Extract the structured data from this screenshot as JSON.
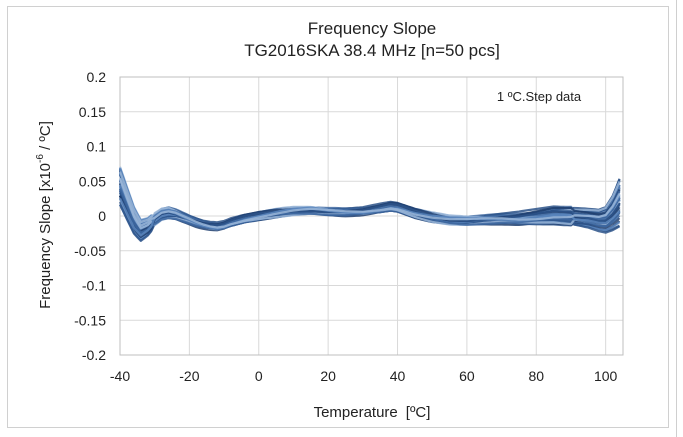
{
  "chart_data": {
    "type": "line",
    "title": "Frequency Slope",
    "subtitle": "TG2016SKA 38.4 MHz [n=50 pcs]",
    "xlabel": "Temperature",
    "xlabel_unit": "[ºC]",
    "ylabel_pre": "Frequency Slope [x10",
    "ylabel_exp": "-6",
    "ylabel_post": " / ºC]",
    "annotation": "1 ºC.Step data",
    "xlim": [
      -40,
      105
    ],
    "ylim": [
      -0.2,
      0.2
    ],
    "xticks": [
      -40,
      -20,
      0,
      20,
      40,
      60,
      80,
      100
    ],
    "xtick_labels": [
      "-40",
      "-20",
      "0",
      "20",
      "40",
      "60",
      "80",
      "100"
    ],
    "yticks": [
      -0.2,
      -0.15,
      -0.1,
      -0.05,
      0,
      0.05,
      0.1,
      0.15,
      0.2
    ],
    "ytick_labels": [
      "-0.2",
      "-0.15",
      "-0.1",
      "-0.05",
      "0",
      "0.05",
      "0.1",
      "0.15",
      "0.2"
    ],
    "grid": true,
    "series_count": 50,
    "series_colors": [
      "#1f3e6e",
      "#2b5288",
      "#3d67a0",
      "#5a86bd",
      "#9ab6d8"
    ],
    "envelope": {
      "x": [
        -40,
        -38,
        -36,
        -34,
        -32,
        -30,
        -28,
        -26,
        -24,
        -22,
        -20,
        -18,
        -16,
        -14,
        -12,
        -10,
        -8,
        -6,
        -4,
        -2,
        0,
        5,
        10,
        15,
        20,
        25,
        30,
        35,
        38,
        40,
        42,
        45,
        50,
        55,
        60,
        65,
        70,
        75,
        80,
        85,
        90,
        95,
        98,
        100,
        102,
        104
      ],
      "mean": [
        0.045,
        0.02,
        -0.005,
        -0.02,
        -0.015,
        -0.005,
        0.002,
        0.004,
        0.002,
        -0.002,
        -0.006,
        -0.01,
        -0.013,
        -0.015,
        -0.016,
        -0.014,
        -0.01,
        -0.007,
        -0.004,
        -0.002,
        0.0,
        0.004,
        0.007,
        0.008,
        0.006,
        0.005,
        0.006,
        0.01,
        0.013,
        0.012,
        0.009,
        0.004,
        -0.002,
        -0.006,
        -0.007,
        -0.006,
        -0.005,
        -0.005,
        -0.003,
        0.0,
        0.0,
        -0.003,
        -0.006,
        -0.005,
        0.005,
        0.02
      ],
      "spread": [
        0.03,
        0.025,
        0.02,
        0.015,
        0.012,
        0.01,
        0.01,
        0.01,
        0.008,
        0.007,
        0.006,
        0.006,
        0.005,
        0.005,
        0.005,
        0.005,
        0.005,
        0.005,
        0.005,
        0.005,
        0.005,
        0.005,
        0.005,
        0.005,
        0.005,
        0.005,
        0.005,
        0.006,
        0.006,
        0.006,
        0.006,
        0.006,
        0.006,
        0.006,
        0.007,
        0.007,
        0.008,
        0.01,
        0.012,
        0.014,
        0.015,
        0.017,
        0.02,
        0.025,
        0.035,
        0.05
      ]
    }
  }
}
